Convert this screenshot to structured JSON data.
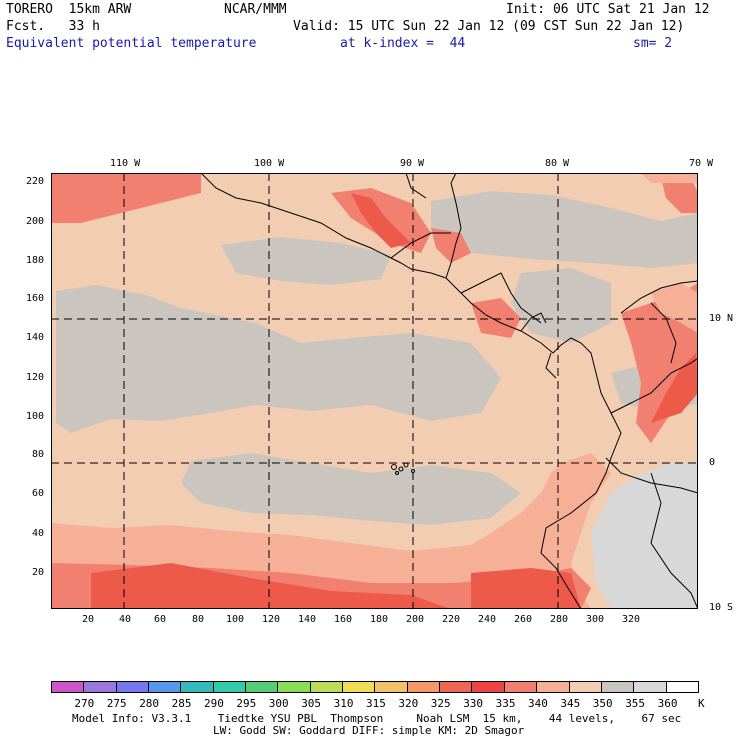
{
  "header": {
    "model": "TORERO  15km ARW",
    "center": "NCAR/MMM",
    "init": "Init: 06 UTC Sat 21 Jan 12",
    "fcst": "Fcst.   33 h",
    "valid": "Valid: 15 UTC Sun 22 Jan 12 (09 CST Sun 22 Jan 12)",
    "field": "Equivalent potential temperature",
    "level": "at k-index =  44",
    "smooth": "sm= 2"
  },
  "top_lon_labels": [
    "110 W",
    "100 W",
    "90 W",
    "80 W",
    "70 W"
  ],
  "right_lat_labels": [
    "10 N",
    "0",
    "10 S"
  ],
  "y_ticks": [
    "220",
    "200",
    "180",
    "160",
    "140",
    "120",
    "100",
    "80",
    "60",
    "40",
    "20"
  ],
  "x_ticks": [
    "20",
    "40",
    "60",
    "80",
    "100",
    "120",
    "140",
    "160",
    "180",
    "200",
    "220",
    "240",
    "260",
    "280",
    "300",
    "320"
  ],
  "colorbar": {
    "labels": [
      "270",
      "275",
      "280",
      "285",
      "290",
      "295",
      "300",
      "305",
      "310",
      "315",
      "320",
      "325",
      "330",
      "335",
      "340",
      "345",
      "350",
      "355",
      "360"
    ],
    "unit": "K",
    "colors": [
      "#cc55cc",
      "#9977dd",
      "#7777ee",
      "#5599ee",
      "#33bbbb",
      "#33ccaa",
      "#55cc77",
      "#88dd55",
      "#bbdd55",
      "#eedd55",
      "#f2c266",
      "#f59966",
      "#f06655",
      "#ee4444",
      "#f28070",
      "#f7b098",
      "#f2cdb2",
      "#cbc5c0",
      "#d8d8d8",
      "#ffffff"
    ]
  },
  "footer": {
    "line1": "Model Info: V3.3.1    Tiedtke YSU PBL  Thompson     Noah LSM  15 km,    44 levels,    67 sec",
    "line2": "LW: Godd SW: Goddard DIFF: simple KM: 2D Smagor"
  }
}
